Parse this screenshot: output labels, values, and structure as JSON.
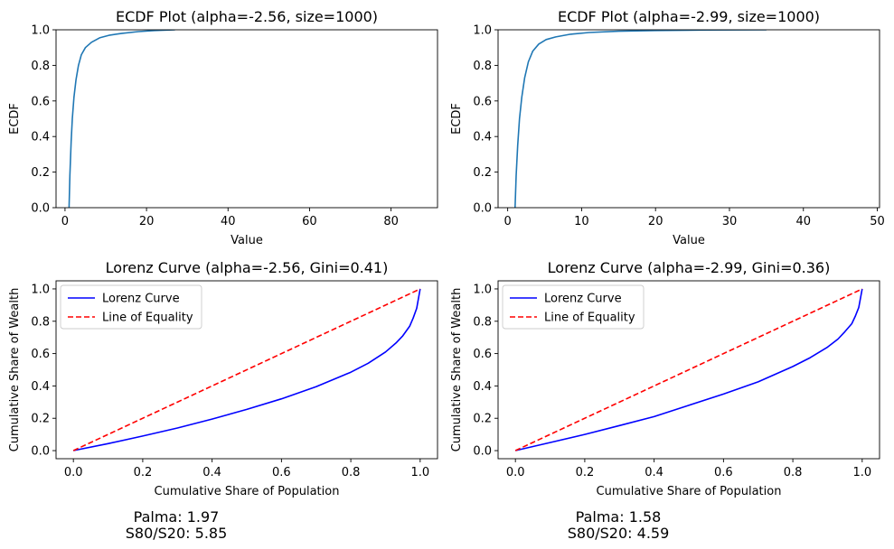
{
  "chart_data": [
    {
      "type": "line",
      "title": "ECDF Plot (alpha=-2.56, size=1000)",
      "xlabel": "Value",
      "ylabel": "ECDF",
      "xlim": [
        -2.2,
        91.4
      ],
      "ylim": [
        0,
        1
      ],
      "xticks": [
        0,
        20,
        40,
        60,
        80
      ],
      "yticks": [
        0.0,
        0.2,
        0.4,
        0.6,
        0.8,
        1.0
      ],
      "series": [
        {
          "color": "#1f77b4",
          "x": [
            1.0,
            1.2,
            1.5,
            1.8,
            2.2,
            2.7,
            3.3,
            4.0,
            5.0,
            6.5,
            8.5,
            11,
            14,
            18,
            22,
            27
          ],
          "y": [
            0.0,
            0.18,
            0.37,
            0.5,
            0.62,
            0.72,
            0.8,
            0.86,
            0.9,
            0.93,
            0.955,
            0.97,
            0.98,
            0.99,
            0.996,
            1.0
          ]
        }
      ]
    },
    {
      "type": "line",
      "title": "ECDF Plot (alpha=-2.99, size=1000)",
      "xlabel": "Value",
      "ylabel": "ECDF",
      "xlim": [
        -1.3,
        50.3
      ],
      "ylim": [
        0,
        1
      ],
      "xticks": [
        0,
        10,
        20,
        30,
        40,
        50
      ],
      "yticks": [
        0.0,
        0.2,
        0.4,
        0.6,
        0.8,
        1.0
      ],
      "series": [
        {
          "color": "#1f77b4",
          "x": [
            1.0,
            1.15,
            1.35,
            1.6,
            1.9,
            2.3,
            2.8,
            3.4,
            4.2,
            5.2,
            6.5,
            8.5,
            11,
            15,
            20,
            27,
            35
          ],
          "y": [
            0.0,
            0.18,
            0.35,
            0.5,
            0.62,
            0.73,
            0.82,
            0.88,
            0.92,
            0.945,
            0.96,
            0.975,
            0.985,
            0.992,
            0.996,
            0.999,
            1.0
          ]
        }
      ]
    },
    {
      "type": "line",
      "title": "Lorenz Curve (alpha=-2.56, Gini=0.41)",
      "xlabel": "Cumulative Share of Population",
      "ylabel": "Cumulative Share of Wealth",
      "xlim": [
        -0.05,
        1.05
      ],
      "ylim": [
        -0.05,
        1.05
      ],
      "xticks": [
        0.0,
        0.2,
        0.4,
        0.6,
        0.8,
        1.0
      ],
      "yticks": [
        0.0,
        0.2,
        0.4,
        0.6,
        0.8,
        1.0
      ],
      "legend": "top-left",
      "series": [
        {
          "name": "Lorenz Curve",
          "color": "#0000ff",
          "dash": "solid",
          "x": [
            0.0,
            0.1,
            0.2,
            0.3,
            0.4,
            0.5,
            0.6,
            0.7,
            0.8,
            0.85,
            0.9,
            0.93,
            0.95,
            0.97,
            0.98,
            0.99,
            1.0
          ],
          "y": [
            0.0,
            0.043,
            0.09,
            0.14,
            0.195,
            0.255,
            0.32,
            0.395,
            0.485,
            0.54,
            0.61,
            0.665,
            0.71,
            0.77,
            0.82,
            0.88,
            1.0
          ]
        },
        {
          "name": "Line of Equality",
          "color": "#ff0000",
          "dash": "dashed",
          "x": [
            0.0,
            1.0
          ],
          "y": [
            0.0,
            1.0
          ]
        }
      ],
      "annotations": [
        "Palma: 1.97",
        "S80/S20: 5.85"
      ]
    },
    {
      "type": "line",
      "title": "Lorenz Curve (alpha=-2.99, Gini=0.36)",
      "xlabel": "Cumulative Share of Population",
      "ylabel": "Cumulative Share of Wealth",
      "xlim": [
        -0.05,
        1.05
      ],
      "ylim": [
        -0.05,
        1.05
      ],
      "xticks": [
        0.0,
        0.2,
        0.4,
        0.6,
        0.8,
        1.0
      ],
      "yticks": [
        0.0,
        0.2,
        0.4,
        0.6,
        0.8,
        1.0
      ],
      "legend": "top-left",
      "series": [
        {
          "name": "Lorenz Curve",
          "color": "#0000ff",
          "dash": "solid",
          "x": [
            0.0,
            0.1,
            0.2,
            0.3,
            0.4,
            0.5,
            0.6,
            0.7,
            0.8,
            0.85,
            0.9,
            0.93,
            0.95,
            0.97,
            0.98,
            0.99,
            1.0
          ],
          "y": [
            0.0,
            0.05,
            0.1,
            0.155,
            0.21,
            0.28,
            0.35,
            0.425,
            0.52,
            0.575,
            0.64,
            0.69,
            0.735,
            0.785,
            0.83,
            0.885,
            1.0
          ]
        },
        {
          "name": "Line of Equality",
          "color": "#ff0000",
          "dash": "dashed",
          "x": [
            0.0,
            1.0
          ],
          "y": [
            0.0,
            1.0
          ]
        }
      ],
      "annotations": [
        "Palma: 1.58",
        "S80/S20: 4.59"
      ]
    }
  ]
}
